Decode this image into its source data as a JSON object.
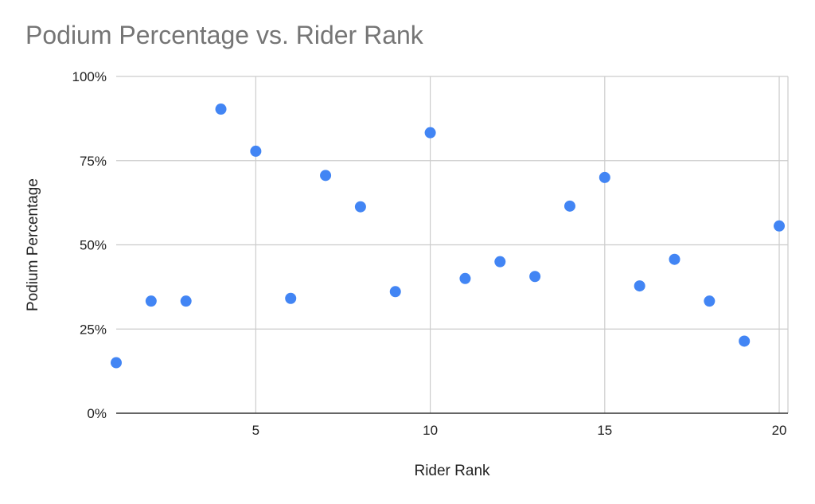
{
  "chart_data": {
    "type": "scatter",
    "title": "Podium Percentage vs. Rider Rank",
    "xlabel": "Rider Rank",
    "ylabel": "Podium Percentage",
    "xlim": [
      1,
      20.25
    ],
    "ylim": [
      0,
      100
    ],
    "x_ticks": [
      5,
      10,
      15,
      20
    ],
    "y_ticks": [
      0,
      25,
      50,
      75,
      100
    ],
    "y_tick_labels": [
      "0%",
      "25%",
      "50%",
      "75%",
      "100%"
    ],
    "x_tick_labels": [
      "5",
      "10",
      "15",
      "20"
    ],
    "grid": true,
    "legend": "none",
    "point_color": "#4285f4",
    "series": [
      {
        "x": [
          1,
          2,
          3,
          4,
          5,
          6,
          7,
          8,
          9,
          10,
          11,
          12,
          13,
          14,
          15,
          16,
          17,
          18,
          19,
          20
        ],
        "y": [
          15,
          33.3,
          33.3,
          90.3,
          77.8,
          34.1,
          70.6,
          61.3,
          36.1,
          83.3,
          40,
          45,
          40.6,
          61.5,
          70,
          37.8,
          45.7,
          33.3,
          21.4,
          55.6
        ]
      }
    ]
  }
}
